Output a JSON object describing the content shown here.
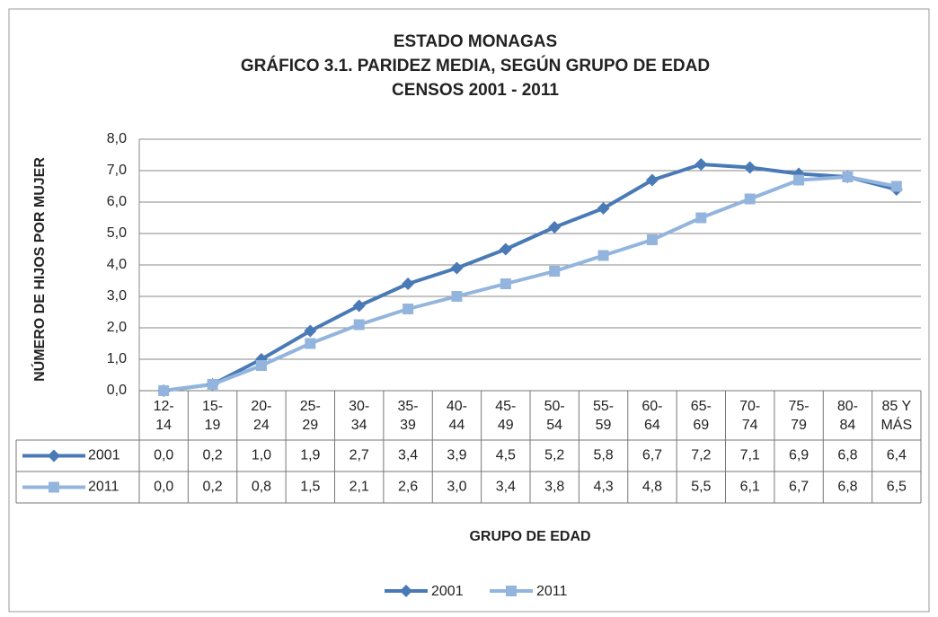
{
  "chart_data": {
    "type": "line",
    "title": [
      "ESTADO MONAGAS",
      "GRÁFICO 3.1. PARIDEZ MEDIA, SEGÚN GRUPO DE EDAD",
      "CENSOS 2001 - 2011"
    ],
    "x_label": "GRUPO DE EDAD",
    "y_label": "NÚMERO DE HIJOS POR MUJER",
    "categories": [
      [
        "12-",
        "14"
      ],
      [
        "15-",
        "19"
      ],
      [
        "20-",
        "24"
      ],
      [
        "25-",
        "29"
      ],
      [
        "30-",
        "34"
      ],
      [
        "35-",
        "39"
      ],
      [
        "40-",
        "44"
      ],
      [
        "45-",
        "49"
      ],
      [
        "50-",
        "54"
      ],
      [
        "55-",
        "59"
      ],
      [
        "60-",
        "64"
      ],
      [
        "65-",
        "69"
      ],
      [
        "70-",
        "74"
      ],
      [
        "75-",
        "79"
      ],
      [
        "80-",
        "84"
      ],
      [
        "85 Y",
        "MÁS"
      ]
    ],
    "series": [
      {
        "name": "2001",
        "color": "#4a7ab5",
        "marker": "diamond",
        "values": [
          0.0,
          0.2,
          1.0,
          1.9,
          2.7,
          3.4,
          3.9,
          4.5,
          5.2,
          5.8,
          6.7,
          7.2,
          7.1,
          6.9,
          6.8,
          6.4
        ],
        "value_labels": [
          "0,0",
          "0,2",
          "1,0",
          "1,9",
          "2,7",
          "3,4",
          "3,9",
          "4,5",
          "5,2",
          "5,8",
          "6,7",
          "7,2",
          "7,1",
          "6,9",
          "6,8",
          "6,4"
        ]
      },
      {
        "name": "2011",
        "color": "#93b5dd",
        "marker": "square",
        "values": [
          0.0,
          0.2,
          0.8,
          1.5,
          2.1,
          2.6,
          3.0,
          3.4,
          3.8,
          4.3,
          4.8,
          5.5,
          6.1,
          6.7,
          6.8,
          6.5
        ],
        "value_labels": [
          "0,0",
          "0,2",
          "0,8",
          "1,5",
          "2,1",
          "2,6",
          "3,0",
          "3,4",
          "3,8",
          "4,3",
          "4,8",
          "5,5",
          "6,1",
          "6,7",
          "6,8",
          "6,5"
        ]
      }
    ],
    "ylim": [
      0,
      8
    ],
    "yticks": [
      {
        "value": 0,
        "label": "0,0"
      },
      {
        "value": 1,
        "label": "1,0"
      },
      {
        "value": 2,
        "label": "2,0"
      },
      {
        "value": 3,
        "label": "3,0"
      },
      {
        "value": 4,
        "label": "4,0"
      },
      {
        "value": 5,
        "label": "5,0"
      },
      {
        "value": 6,
        "label": "6,0"
      },
      {
        "value": 7,
        "label": "7,0"
      },
      {
        "value": 8,
        "label": "8,0"
      }
    ],
    "grid": true,
    "legend": "bottom",
    "data_table": true
  }
}
